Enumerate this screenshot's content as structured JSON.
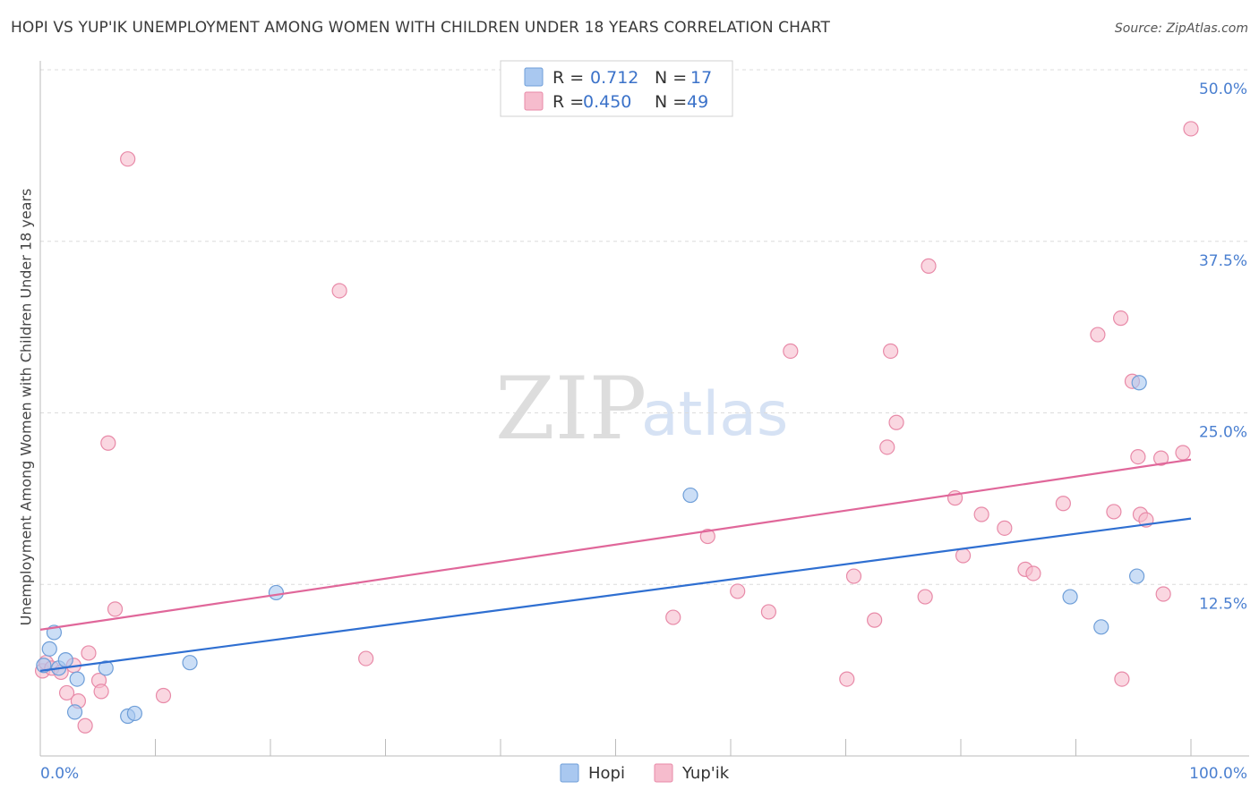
{
  "header": {
    "title": "HOPI VS YUP'IK UNEMPLOYMENT AMONG WOMEN WITH CHILDREN UNDER 18 YEARS CORRELATION CHART",
    "source": "Source: ZipAtlas.com"
  },
  "watermark": {
    "zip": "ZIP",
    "atlas": "atlas"
  },
  "colors": {
    "hopi_fill": "#a9c8f0",
    "hopi_stroke": "#6e9ed8",
    "hopi_line": "#2f6fd1",
    "yupik_fill": "#f6bccd",
    "yupik_stroke": "#e88aa8",
    "yupik_line": "#e0679a",
    "grid": "#dcdcdc",
    "tick_label": "#4a7fd0"
  },
  "legend": {
    "r_label": "R =",
    "n_label": "N =",
    "hopi": {
      "r": "0.712",
      "n": "17"
    },
    "yupik": {
      "r": "0.450",
      "n": "49"
    }
  },
  "chart_data": {
    "type": "scatter",
    "title": "HOPI VS YUP'IK UNEMPLOYMENT AMONG WOMEN WITH CHILDREN UNDER 18 YEARS CORRELATION CHART",
    "xlabel": "",
    "ylabel": "Unemployment Among Women with Children Under 18 years",
    "xlim": [
      0,
      100
    ],
    "ylim": [
      0,
      50
    ],
    "x_tick_labels": [
      "0.0%",
      "100.0%"
    ],
    "y_ticks": [
      {
        "value": 12.5,
        "label": "12.5%"
      },
      {
        "value": 25.0,
        "label": "25.0%"
      },
      {
        "value": 37.5,
        "label": "37.5%"
      },
      {
        "value": 50.0,
        "label": "50.0%"
      }
    ],
    "legend_position": "bottom-center",
    "series": [
      {
        "name": "Hopi",
        "trend": {
          "x": [
            0,
            100
          ],
          "y": [
            6.2,
            17.3
          ]
        },
        "points": [
          {
            "x": 0.3,
            "y": 6.6
          },
          {
            "x": 0.8,
            "y": 7.8
          },
          {
            "x": 1.2,
            "y": 9.0
          },
          {
            "x": 1.6,
            "y": 6.4
          },
          {
            "x": 2.2,
            "y": 7.0
          },
          {
            "x": 3.0,
            "y": 3.2
          },
          {
            "x": 3.2,
            "y": 5.6
          },
          {
            "x": 5.7,
            "y": 6.4
          },
          {
            "x": 7.6,
            "y": 2.9
          },
          {
            "x": 8.2,
            "y": 3.1
          },
          {
            "x": 13.0,
            "y": 6.8
          },
          {
            "x": 20.5,
            "y": 11.9
          },
          {
            "x": 56.5,
            "y": 19.0
          },
          {
            "x": 89.5,
            "y": 11.6
          },
          {
            "x": 92.2,
            "y": 9.4
          },
          {
            "x": 95.3,
            "y": 13.1
          },
          {
            "x": 95.5,
            "y": 27.2
          }
        ]
      },
      {
        "name": "Yup'ik",
        "trend": {
          "x": [
            0,
            100
          ],
          "y": [
            9.2,
            21.6
          ]
        },
        "points": [
          {
            "x": 0.2,
            "y": 6.2
          },
          {
            "x": 0.5,
            "y": 6.8
          },
          {
            "x": 1.0,
            "y": 6.4
          },
          {
            "x": 1.8,
            "y": 6.1
          },
          {
            "x": 2.3,
            "y": 4.6
          },
          {
            "x": 2.9,
            "y": 6.6
          },
          {
            "x": 3.3,
            "y": 4.0
          },
          {
            "x": 3.9,
            "y": 2.2
          },
          {
            "x": 4.2,
            "y": 7.5
          },
          {
            "x": 5.1,
            "y": 5.5
          },
          {
            "x": 5.3,
            "y": 4.7
          },
          {
            "x": 5.9,
            "y": 22.8
          },
          {
            "x": 6.5,
            "y": 10.7
          },
          {
            "x": 7.6,
            "y": 43.5
          },
          {
            "x": 10.7,
            "y": 4.4
          },
          {
            "x": 26.0,
            "y": 33.9
          },
          {
            "x": 28.3,
            "y": 7.1
          },
          {
            "x": 55.0,
            "y": 10.1
          },
          {
            "x": 58.0,
            "y": 16.0
          },
          {
            "x": 60.6,
            "y": 12.0
          },
          {
            "x": 63.3,
            "y": 10.5
          },
          {
            "x": 65.2,
            "y": 29.5
          },
          {
            "x": 70.1,
            "y": 5.6
          },
          {
            "x": 70.7,
            "y": 13.1
          },
          {
            "x": 72.5,
            "y": 9.9
          },
          {
            "x": 73.6,
            "y": 22.5
          },
          {
            "x": 73.9,
            "y": 29.5
          },
          {
            "x": 74.4,
            "y": 24.3
          },
          {
            "x": 76.9,
            "y": 11.6
          },
          {
            "x": 77.2,
            "y": 35.7
          },
          {
            "x": 79.5,
            "y": 18.8
          },
          {
            "x": 80.2,
            "y": 14.6
          },
          {
            "x": 81.8,
            "y": 17.6
          },
          {
            "x": 83.8,
            "y": 16.6
          },
          {
            "x": 85.6,
            "y": 13.6
          },
          {
            "x": 86.3,
            "y": 13.3
          },
          {
            "x": 88.9,
            "y": 18.4
          },
          {
            "x": 91.9,
            "y": 30.7
          },
          {
            "x": 93.3,
            "y": 17.8
          },
          {
            "x": 93.9,
            "y": 31.9
          },
          {
            "x": 94.0,
            "y": 5.6
          },
          {
            "x": 94.9,
            "y": 27.3
          },
          {
            "x": 95.4,
            "y": 21.8
          },
          {
            "x": 95.6,
            "y": 17.6
          },
          {
            "x": 96.1,
            "y": 17.2
          },
          {
            "x": 97.4,
            "y": 21.7
          },
          {
            "x": 97.6,
            "y": 11.8
          },
          {
            "x": 99.3,
            "y": 22.1
          },
          {
            "x": 100.0,
            "y": 45.7
          }
        ]
      }
    ]
  }
}
